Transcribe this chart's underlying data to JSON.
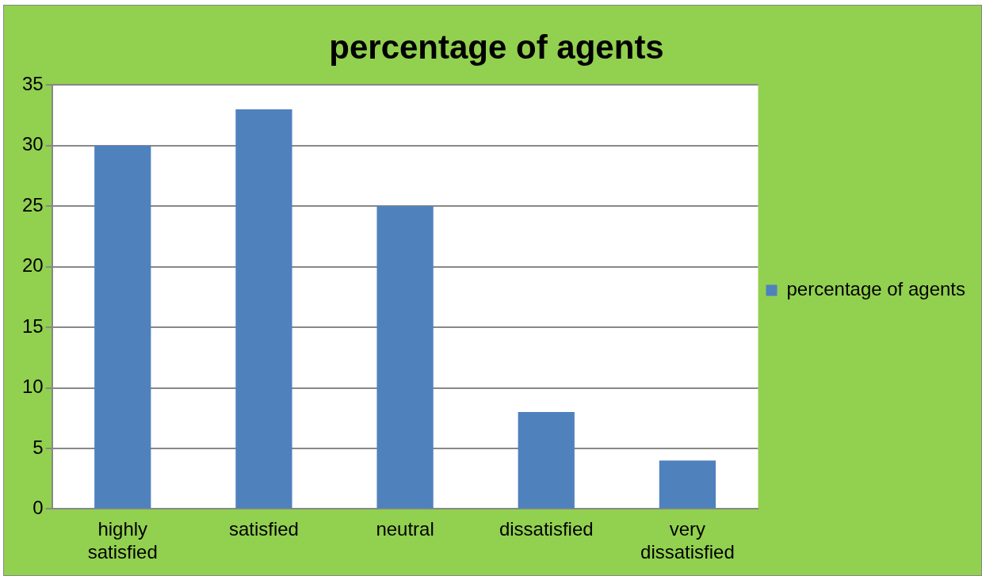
{
  "chart_data": {
    "type": "bar",
    "title": "percentage of agents",
    "categories": [
      "highly satisfied",
      "satisfied",
      "neutral",
      "dissatisfied",
      "very dissatisfied"
    ],
    "series": [
      {
        "name": "percentage of agents",
        "color": "#4f81bd",
        "values": [
          30,
          33,
          25,
          8,
          4
        ]
      }
    ],
    "ylim": [
      0,
      35
    ],
    "yticks": [
      0,
      5,
      10,
      15,
      20,
      25,
      30,
      35
    ],
    "grid": "y",
    "legend": "right"
  }
}
